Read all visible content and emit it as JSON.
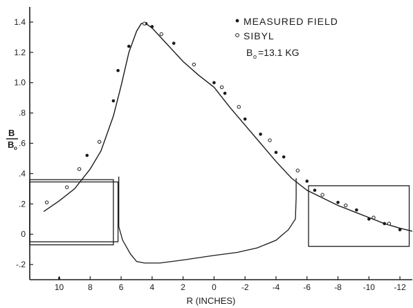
{
  "chart_data": {
    "type": "line",
    "xlabel": "R (INCHES)",
    "ylabel_num": "B",
    "ylabel_den": "B",
    "ylabel_den_sub": "o",
    "xlim": [
      11.9,
      -12.8
    ],
    "ylim": [
      -0.3,
      1.5
    ],
    "x_ticks": [
      {
        "value": 10,
        "label": "10"
      },
      {
        "value": 8,
        "label": "8"
      },
      {
        "value": 6,
        "label": "6"
      },
      {
        "value": 4,
        "label": "4"
      },
      {
        "value": 2,
        "label": "2"
      },
      {
        "value": 0,
        "label": "0"
      },
      {
        "value": -2,
        "label": "-2"
      },
      {
        "value": -4,
        "label": "-4"
      },
      {
        "value": -6,
        "label": "-6"
      },
      {
        "value": -8,
        "label": "-8"
      },
      {
        "value": -10,
        "label": "-10"
      },
      {
        "value": -12,
        "label": "-12"
      }
    ],
    "y_ticks": [
      {
        "value": 1.4,
        "label": "1.4"
      },
      {
        "value": 1.2,
        "label": "1.2"
      },
      {
        "value": 1.0,
        "label": "1.0"
      },
      {
        "value": 0.8,
        "label": ".8"
      },
      {
        "value": 0.6,
        "label": ".6"
      },
      {
        "value": 0.4,
        "label": ".4"
      },
      {
        "value": 0.2,
        "label": ".2"
      },
      {
        "value": 0,
        "label": "0"
      },
      {
        "value": -0.2,
        "label": "-.2"
      }
    ],
    "legend": [
      {
        "marker": "filled",
        "label": "MEASURED FIELD"
      },
      {
        "marker": "open",
        "label": "SIBYL"
      }
    ],
    "annotation": {
      "main": "B",
      "sub": "o",
      "rest": "=13.1 KG"
    },
    "grid": false,
    "legend_position": "top-right",
    "series": [
      {
        "style": "solid-line",
        "x": [
          11.0,
          10.0,
          9.0,
          8.0,
          7.3,
          6.5,
          6.0,
          5.5,
          5.0,
          4.7,
          4.4,
          4.0,
          3.0,
          2.0,
          1.0,
          0.0,
          -1.0,
          -2.0,
          -3.0,
          -4.0,
          -5.0,
          -6.0,
          -7.0,
          -8.0,
          -9.0,
          -10.0,
          -11.0,
          -12.0,
          -12.8
        ],
        "y": [
          0.15,
          0.22,
          0.3,
          0.43,
          0.55,
          0.78,
          0.98,
          1.2,
          1.34,
          1.39,
          1.39,
          1.36,
          1.25,
          1.14,
          1.05,
          0.97,
          0.84,
          0.72,
          0.6,
          0.48,
          0.37,
          0.29,
          0.24,
          0.19,
          0.15,
          0.11,
          0.07,
          0.04,
          0.02
        ]
      },
      {
        "style": "filled-marker",
        "x": [
          8.2,
          6.5,
          6.2,
          5.5,
          4.4,
          4.0,
          2.6,
          0.0,
          -0.7,
          -2.0,
          -3.0,
          -4.0,
          -4.5,
          -6.0,
          -6.5,
          -8.0,
          -9.2,
          -10.0,
          -11.0,
          -12.0
        ],
        "y": [
          0.52,
          0.88,
          1.08,
          1.24,
          1.39,
          1.37,
          1.26,
          1.0,
          0.93,
          0.76,
          0.66,
          0.54,
          0.51,
          0.35,
          0.29,
          0.21,
          0.16,
          0.1,
          0.07,
          0.03
        ]
      },
      {
        "style": "open-marker",
        "x": [
          10.8,
          9.5,
          8.7,
          7.4,
          4.5,
          3.4,
          1.3,
          -0.5,
          -1.6,
          -3.6,
          -5.4,
          -7.0,
          -8.5,
          -10.3,
          -11.3
        ],
        "y": [
          0.21,
          0.31,
          0.43,
          0.61,
          1.39,
          1.32,
          1.12,
          0.97,
          0.84,
          0.62,
          0.42,
          0.26,
          0.19,
          0.11,
          0.07
        ]
      },
      {
        "style": "iron-outline",
        "x": [
          6.15,
          6.15,
          5.9,
          5.4,
          5.0,
          4.5,
          3.5,
          2.0,
          0.0,
          -1.5,
          -2.8,
          -4.0,
          -4.8,
          -5.25,
          -5.3,
          -5.3
        ],
        "y": [
          0.38,
          0.05,
          -0.04,
          -0.13,
          -0.18,
          -0.19,
          -0.19,
          -0.17,
          -0.14,
          -0.12,
          -0.09,
          -0.04,
          0.03,
          0.1,
          0.24,
          0.37
        ]
      }
    ],
    "rectangles": [
      {
        "x": [
          11.9,
          6.2
        ],
        "y": [
          -0.05,
          0.345
        ]
      },
      {
        "x": [
          11.9,
          6.5
        ],
        "y": [
          -0.07,
          0.36
        ]
      },
      {
        "x": [
          -6.1,
          -12.6
        ],
        "y": [
          -0.08,
          0.32
        ]
      }
    ],
    "stray_mark": {
      "x": 10.0,
      "y": -0.29
    }
  }
}
